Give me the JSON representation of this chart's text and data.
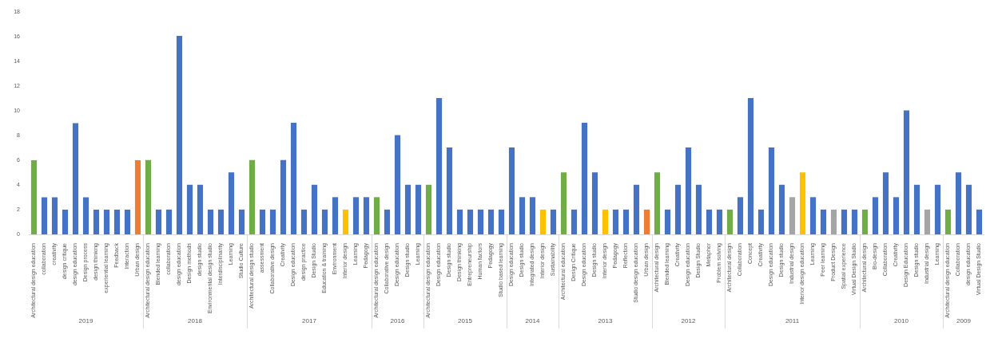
{
  "chart_data": [
    {
      "type": "bar",
      "xlabel": "2019",
      "categories": [
        "Architectural design education",
        "collaboration",
        "creativity",
        "design critique",
        "design education",
        "Design process",
        "design thinking",
        "experiential learning",
        "Feedback",
        "Interaction",
        "Urban design"
      ],
      "values": [
        6,
        3,
        3,
        2,
        9,
        3,
        2,
        2,
        2,
        2,
        6
      ],
      "colors": [
        "#70ad47",
        "#4472c4",
        "#4472c4",
        "#4472c4",
        "#4472c4",
        "#4472c4",
        "#4472c4",
        "#4472c4",
        "#4472c4",
        "#4472c4",
        "#ed7d31"
      ],
      "ylim": [
        0,
        18
      ],
      "yticks": [
        0,
        2,
        4,
        6,
        8,
        10,
        12,
        14,
        16,
        18
      ]
    },
    {
      "type": "bar",
      "xlabel": "2018",
      "categories": [
        "Architectural design education",
        "Blended learning",
        "collaboration",
        "design education",
        "Design methods",
        "design studio",
        "Environmental design studio",
        "Interdisciplinarity",
        "Learning",
        "Studio Culture"
      ],
      "values": [
        6,
        2,
        2,
        16,
        4,
        4,
        2,
        2,
        5,
        2
      ],
      "colors": [
        "#70ad47",
        "#4472c4",
        "#4472c4",
        "#4472c4",
        "#4472c4",
        "#4472c4",
        "#4472c4",
        "#4472c4",
        "#4472c4",
        "#4472c4"
      ],
      "ylim": [
        0,
        18
      ],
      "tick_labels": "x"
    },
    {
      "type": "bar",
      "xlabel": "2017",
      "categories": [
        "Architectural design studio",
        "assessment",
        "Collaborative design",
        "Creativity",
        "Design education",
        "design practice",
        "Design Studio",
        "Education & training",
        "Environment",
        "Interior design",
        "Learning",
        "Pedagogy"
      ],
      "values": [
        6,
        2,
        2,
        6,
        9,
        2,
        4,
        2,
        3,
        2,
        3,
        3
      ],
      "colors": [
        "#70ad47",
        "#4472c4",
        "#4472c4",
        "#4472c4",
        "#4472c4",
        "#4472c4",
        "#4472c4",
        "#4472c4",
        "#4472c4",
        "#ffc000",
        "#4472c4",
        "#4472c4"
      ],
      "ylim": [
        0,
        18
      ],
      "tick_labels": "x"
    },
    {
      "type": "bar",
      "xlabel": "2016",
      "categories": [
        "Architectural design education",
        "Collaborative design",
        "Design education",
        "Design studio",
        "Learning"
      ],
      "values": [
        3,
        2,
        8,
        4,
        4
      ],
      "colors": [
        "#70ad47",
        "#4472c4",
        "#4472c4",
        "#4472c4",
        "#4472c4"
      ],
      "ylim": [
        0,
        18
      ],
      "tick_labels": "x"
    },
    {
      "type": "bar",
      "xlabel": "2015",
      "categories": [
        "Architectural design education",
        "Design education",
        "Design studio",
        "Design thinking",
        "Entrepreneurship",
        "Human factors",
        "Pedagogy",
        "Studio based learning"
      ],
      "values": [
        4,
        11,
        7,
        2,
        2,
        2,
        2,
        2
      ],
      "colors": [
        "#70ad47",
        "#4472c4",
        "#4472c4",
        "#4472c4",
        "#4472c4",
        "#4472c4",
        "#4472c4",
        "#4472c4"
      ],
      "ylim": [
        0,
        18
      ],
      "tick_labels": "x"
    },
    {
      "type": "bar",
      "xlabel": "2014",
      "categories": [
        "Design education",
        "Design studio",
        "Integrated design",
        "Interior design",
        "Sustainability"
      ],
      "values": [
        7,
        3,
        3,
        2,
        2
      ],
      "colors": [
        "#4472c4",
        "#4472c4",
        "#4472c4",
        "#ffc000",
        "#4472c4"
      ],
      "ylim": [
        0,
        18
      ],
      "tick_labels": "x"
    },
    {
      "type": "bar",
      "xlabel": "2013",
      "categories": [
        "Architectural education",
        "Design Critique",
        "Design education",
        "Design studio",
        "Interior design",
        "Pedagogy",
        "Reflection",
        "Studio design education",
        "Urban design"
      ],
      "values": [
        5,
        2,
        9,
        5,
        2,
        2,
        2,
        4,
        2
      ],
      "colors": [
        "#70ad47",
        "#4472c4",
        "#4472c4",
        "#4472c4",
        "#ffc000",
        "#4472c4",
        "#4472c4",
        "#4472c4",
        "#ed7d31"
      ],
      "ylim": [
        0,
        18
      ],
      "tick_labels": "x"
    },
    {
      "type": "bar",
      "xlabel": "2012",
      "categories": [
        "Architectural design",
        "Blended learning",
        "Creativity",
        "Design education",
        "Design Studio",
        "Metaphor",
        "Problem solving"
      ],
      "values": [
        5,
        2,
        4,
        7,
        4,
        2,
        2
      ],
      "colors": [
        "#70ad47",
        "#4472c4",
        "#4472c4",
        "#4472c4",
        "#4472c4",
        "#4472c4",
        "#4472c4"
      ],
      "ylim": [
        0,
        18
      ],
      "tick_labels": "x"
    },
    {
      "type": "bar",
      "xlabel": "2011",
      "categories": [
        "Architectural design",
        "Collaboration",
        "Concept",
        "Creativity",
        "Design education",
        "Design studio",
        "Industrial design",
        "Interior design education",
        "Learning",
        "Peer learning",
        "Product Design",
        "Spatial experience",
        "Virtual Design Studio"
      ],
      "values": [
        2,
        3,
        11,
        2,
        7,
        4,
        3,
        5,
        3,
        2,
        2,
        2,
        2
      ],
      "colors": [
        "#70ad47",
        "#4472c4",
        "#4472c4",
        "#4472c4",
        "#4472c4",
        "#4472c4",
        "#a5a5a5",
        "#ffc000",
        "#4472c4",
        "#4472c4",
        "#a5a5a5",
        "#4472c4",
        "#4472c4"
      ],
      "ylim": [
        0,
        18
      ],
      "tick_labels": "x"
    },
    {
      "type": "bar",
      "xlabel": "2010",
      "categories": [
        "Architectural design",
        "Bio-design",
        "Collaboration",
        "Creativity",
        "Design Education",
        "Design studio",
        "Industrial design",
        "Learning"
      ],
      "values": [
        2,
        3,
        5,
        3,
        10,
        4,
        2,
        4
      ],
      "colors": [
        "#70ad47",
        "#4472c4",
        "#4472c4",
        "#4472c4",
        "#4472c4",
        "#4472c4",
        "#a5a5a5",
        "#4472c4"
      ],
      "ylim": [
        0,
        18
      ],
      "tick_labels": "x"
    },
    {
      "type": "bar",
      "xlabel": "2009",
      "categories": [
        "Architectural design education",
        "Collaboration",
        "design education",
        "Virtual Design Studio"
      ],
      "values": [
        2,
        5,
        4,
        2
      ],
      "colors": [
        "#70ad47",
        "#4472c4",
        "#4472c4",
        "#4472c4"
      ],
      "ylim": [
        0,
        18
      ],
      "tick_labels": "x"
    }
  ]
}
